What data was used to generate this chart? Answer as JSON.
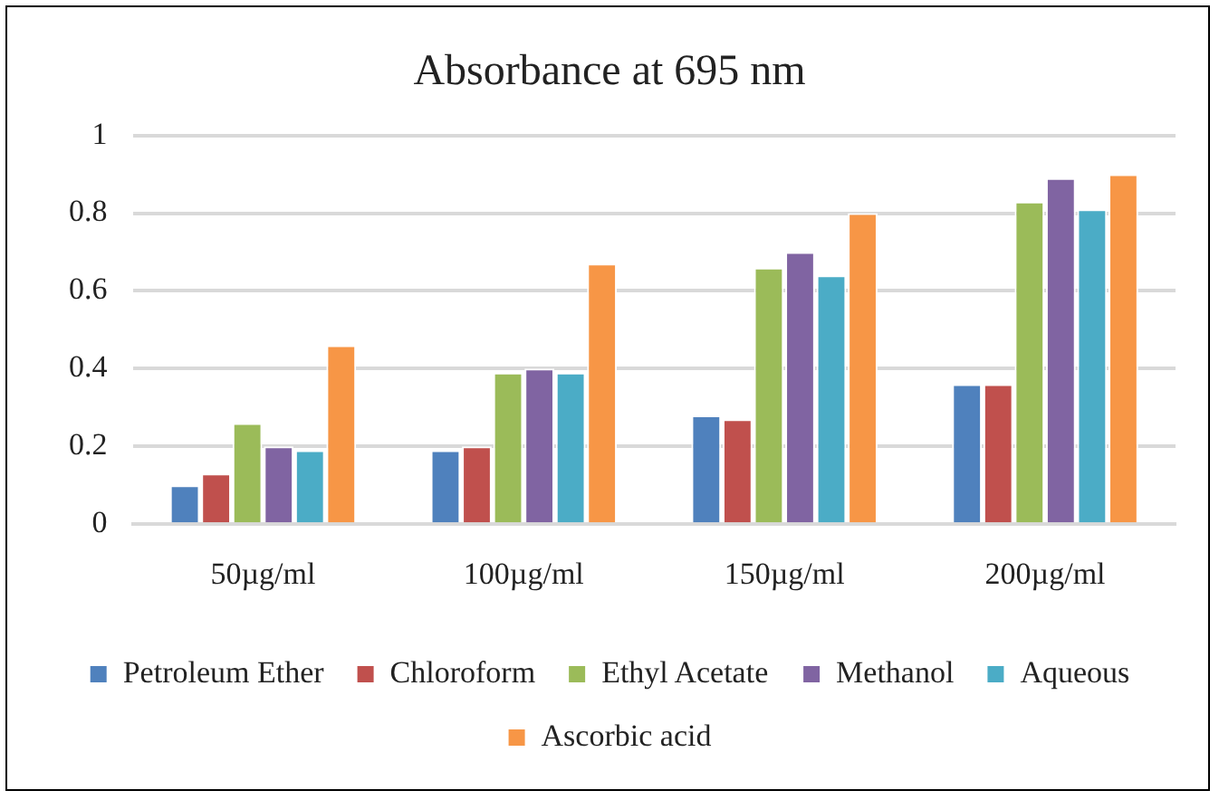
{
  "chart_data": {
    "type": "bar",
    "title": "Absorbance at 695 nm",
    "categories": [
      "50µg/ml",
      "100µg/ml",
      "150µg/ml",
      "200µg/ml"
    ],
    "series": [
      {
        "name": "Petroleum Ether",
        "color": "#4f81bd",
        "values": [
          0.1,
          0.19,
          0.28,
          0.36
        ]
      },
      {
        "name": "Chloroform",
        "color": "#c0504d",
        "values": [
          0.13,
          0.2,
          0.27,
          0.36
        ]
      },
      {
        "name": "Ethyl Acetate",
        "color": "#9bbb59",
        "values": [
          0.26,
          0.39,
          0.66,
          0.83
        ]
      },
      {
        "name": "Methanol",
        "color": "#8064a2",
        "values": [
          0.2,
          0.4,
          0.7,
          0.89
        ]
      },
      {
        "name": "Aqueous",
        "color": "#4bacc6",
        "values": [
          0.19,
          0.39,
          0.64,
          0.81
        ]
      },
      {
        "name": "Ascorbic acid",
        "color": "#f79646",
        "values": [
          0.46,
          0.67,
          0.8,
          0.9
        ]
      }
    ],
    "ylim": [
      0,
      1
    ],
    "yticks": [
      0,
      0.2,
      0.4,
      0.6,
      0.8,
      1
    ],
    "grid": "y",
    "legend": "bottom"
  }
}
